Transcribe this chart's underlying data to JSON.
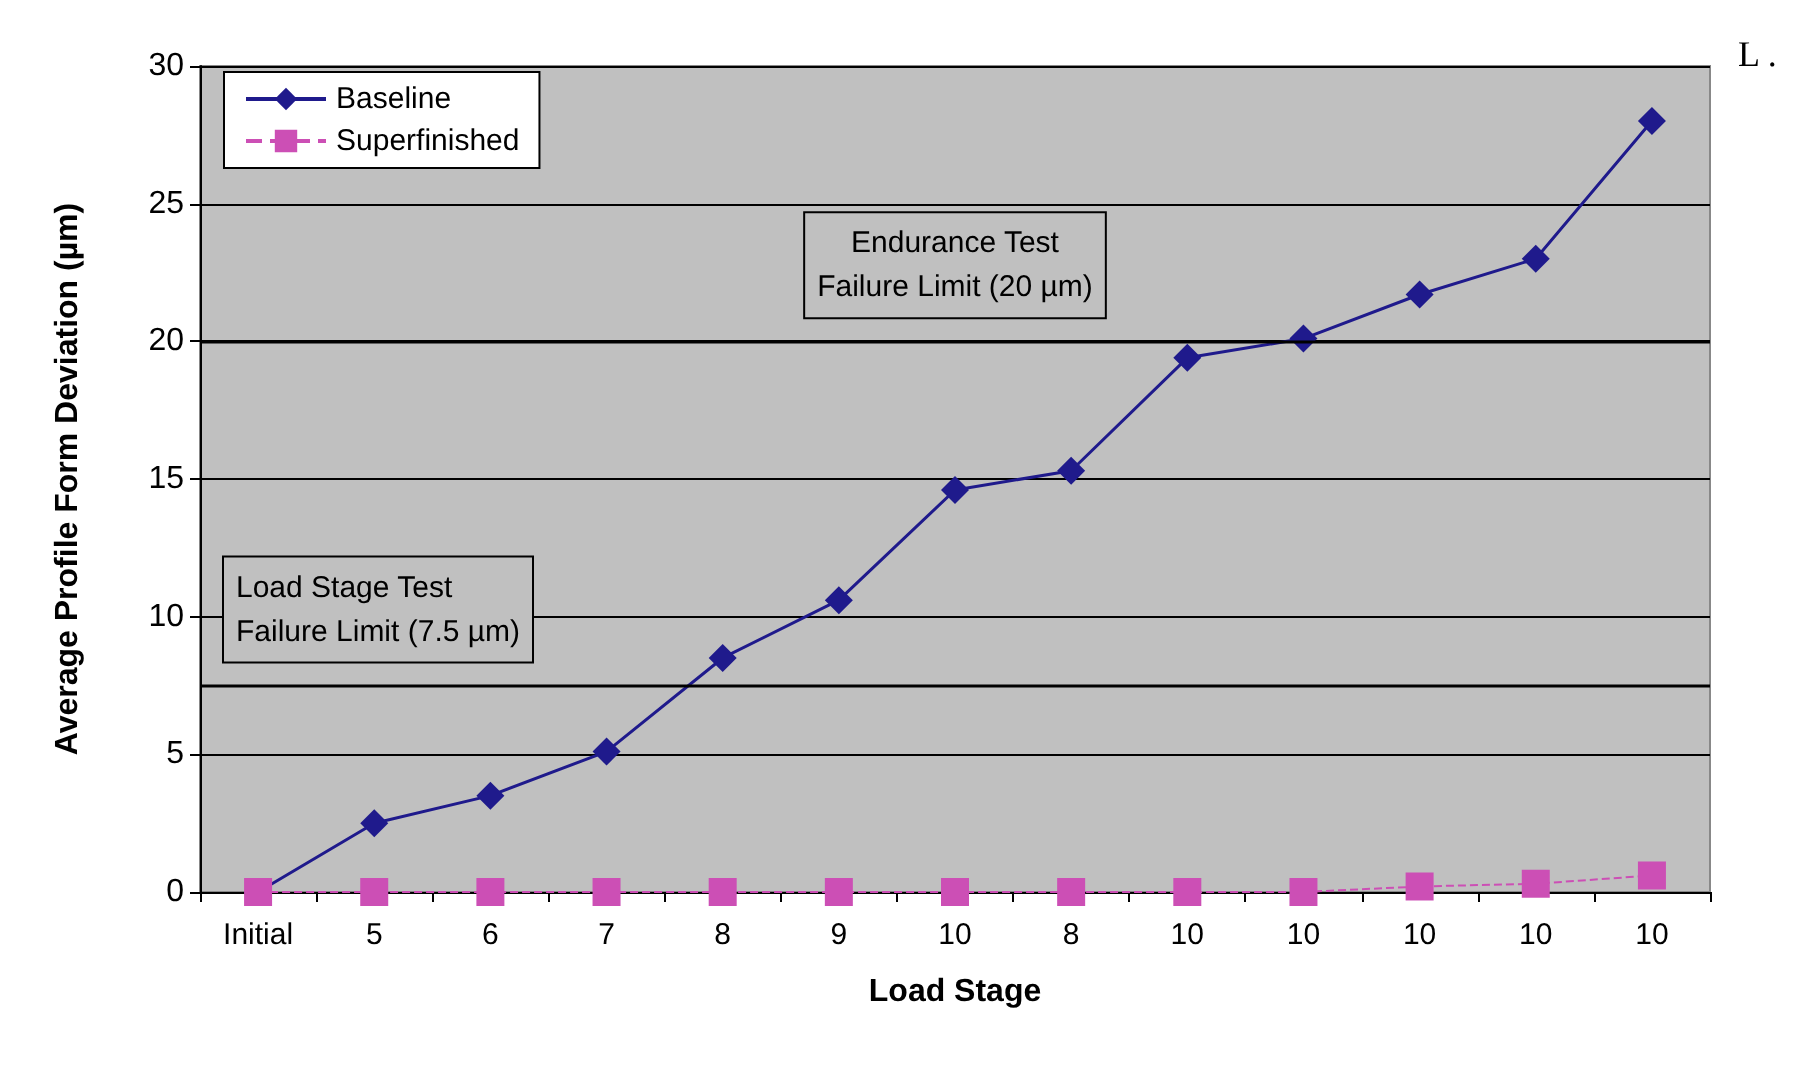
{
  "chart_data": {
    "type": "line",
    "xlabel": "Load Stage",
    "ylabel": "Average Profile Form Deviation (µm)",
    "categories": [
      "Initial",
      "5",
      "6",
      "7",
      "8",
      "9",
      "10",
      "8",
      "10",
      "10",
      "10",
      "10",
      "10"
    ],
    "series": [
      {
        "name": "Baseline",
        "color": "#1f1a8c",
        "marker": "diamond",
        "line_style": "solid",
        "values": [
          0,
          2.5,
          3.5,
          5.1,
          8.5,
          10.6,
          14.6,
          15.3,
          19.4,
          20.1,
          21.7,
          23.0,
          28.0
        ]
      },
      {
        "name": "Superfinished",
        "color": "#cc4fb5",
        "marker": "square",
        "line_style": "dashed",
        "values": [
          0,
          0,
          0,
          0,
          0,
          0,
          0,
          0,
          0,
          0,
          0.2,
          0.3,
          0.6
        ]
      }
    ],
    "ylim": [
      0,
      30
    ],
    "yticks": [
      0,
      5,
      10,
      15,
      20,
      25,
      30
    ],
    "grid": "y",
    "legend": "top left",
    "ref_lines": [
      {
        "axis": "y",
        "value": 7.5,
        "label": "Load Stage Test\nFailure Limit (7.5 µm)",
        "color": "#000000"
      },
      {
        "axis": "y",
        "value": 20,
        "label": "Endurance Test\nFailure Limit (20 µm)",
        "color": "#000000"
      }
    ],
    "annotations": [
      "L ."
    ]
  }
}
